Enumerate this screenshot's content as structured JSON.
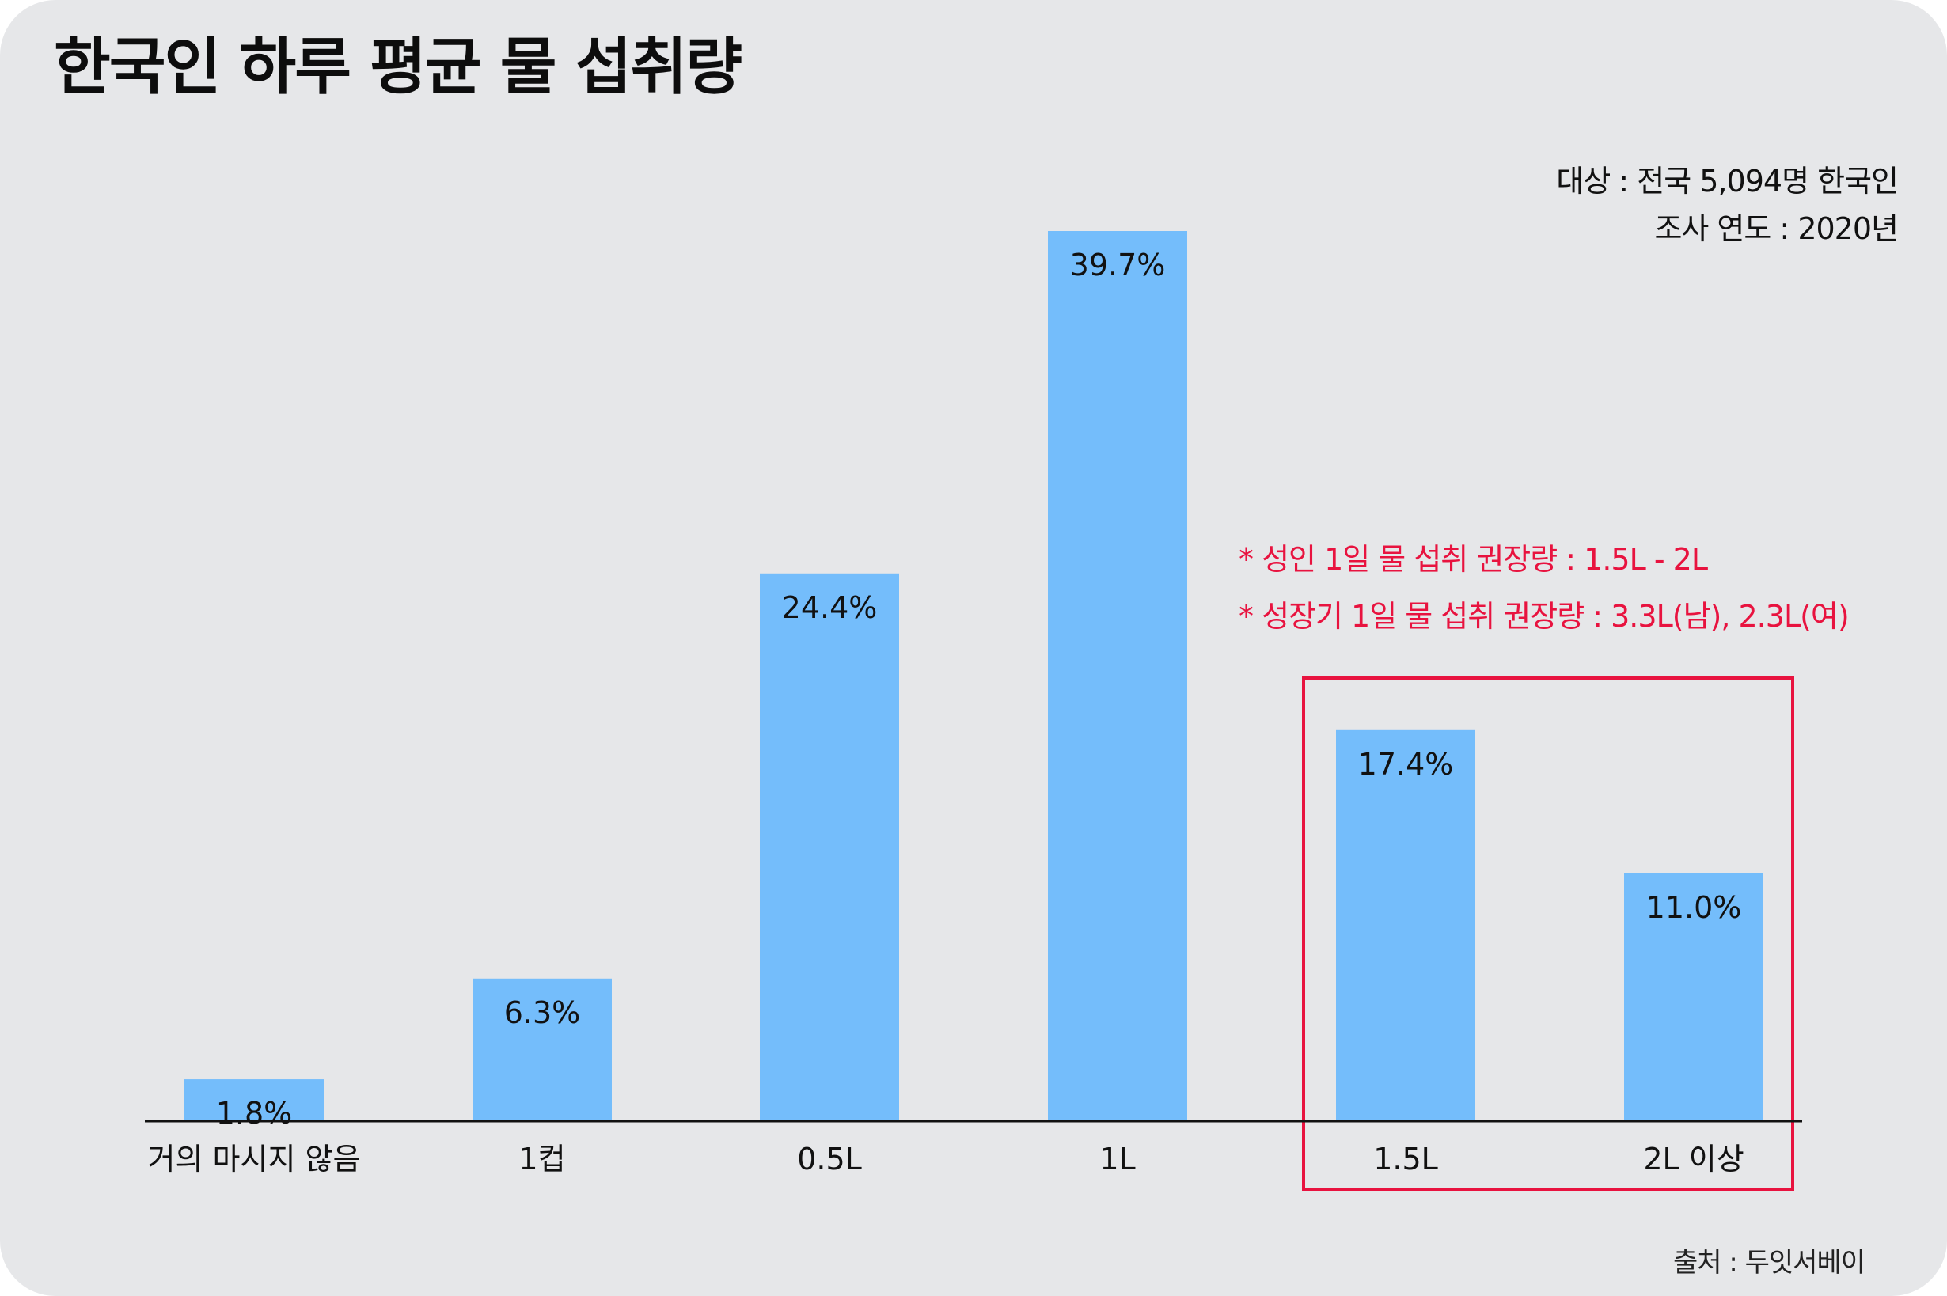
{
  "title": "한국인 하루 평균 물 섭취량",
  "meta": {
    "subject": "대상 : 전국 5,094명 한국인",
    "year": "조사 연도 : 2020년"
  },
  "notes": {
    "adult": "* 성인 1일 물 섭취 권장량 : 1.5L - 2L",
    "growth": "* 성장기 1일 물 섭취 권장량 : 3.3L(남), 2.3L(여)"
  },
  "source": "출처 : 두잇서베이",
  "colors": {
    "bar": "#74bdfb",
    "highlight": "#e8133f",
    "background": "#e6e7e9"
  },
  "chart_data": {
    "type": "bar",
    "title": "한국인 하루 평균 물 섭취량",
    "xlabel": "",
    "ylabel": "",
    "categories": [
      "거의 마시지 않음",
      "1컵",
      "0.5L",
      "1L",
      "1.5L",
      "2L 이상"
    ],
    "values": [
      1.8,
      6.3,
      24.4,
      39.7,
      17.4,
      11.0
    ],
    "data_labels": [
      "1.8%",
      "6.3%",
      "24.4%",
      "39.7%",
      "17.4%",
      "11.0%"
    ],
    "unit": "%",
    "ylim": [
      0,
      39.7
    ],
    "grid": false,
    "legend": "none",
    "highlighted_categories": [
      "1.5L",
      "2L 이상"
    ]
  }
}
